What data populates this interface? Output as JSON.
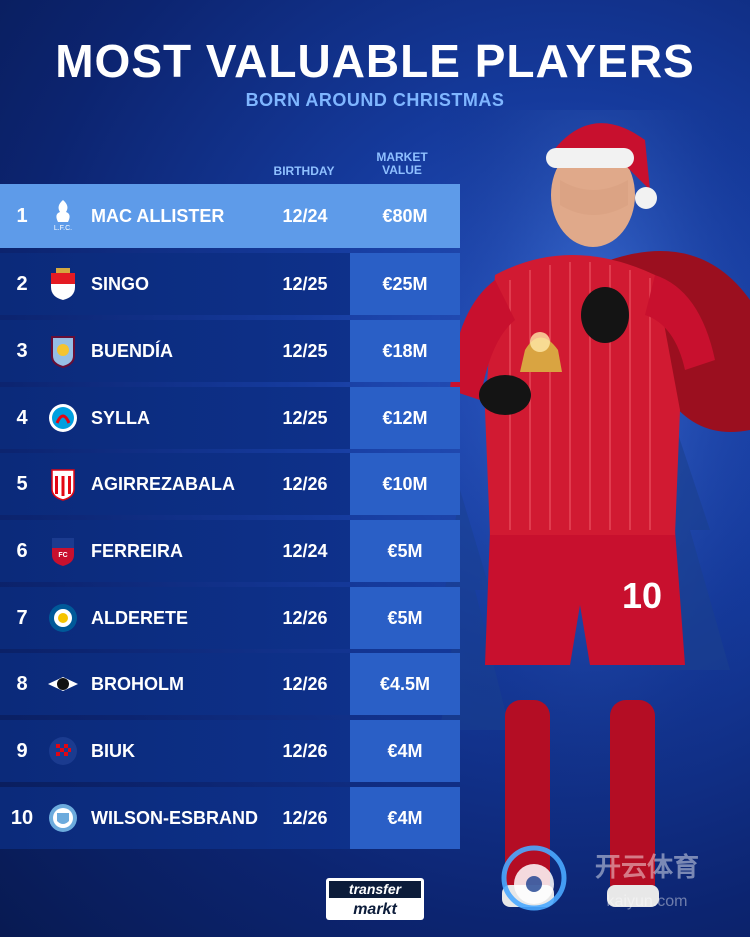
{
  "header": {
    "title": "MOST VALUABLE PLAYERS",
    "subtitle": "BORN AROUND CHRISTMAS"
  },
  "columns": {
    "birthday": "BIRTHDAY",
    "market_value_line1": "MARKET",
    "market_value_line2": "VALUE"
  },
  "players": [
    {
      "rank": "1",
      "name": "MAC ALLISTER",
      "birthday": "12/24",
      "value": "€80M",
      "club_icon": "liverpool-crest-icon"
    },
    {
      "rank": "2",
      "name": "SINGO",
      "birthday": "12/25",
      "value": "€25M",
      "club_icon": "monaco-crest-icon"
    },
    {
      "rank": "3",
      "name": "BUENDÍA",
      "birthday": "12/25",
      "value": "€18M",
      "club_icon": "aston-villa-crest-icon"
    },
    {
      "rank": "4",
      "name": "SYLLA",
      "birthday": "12/25",
      "value": "€12M",
      "club_icon": "strasbourg-crest-icon"
    },
    {
      "rank": "5",
      "name": "AGIRREZABALA",
      "birthday": "12/26",
      "value": "€10M",
      "club_icon": "athletic-club-crest-icon"
    },
    {
      "rank": "6",
      "name": "FERREIRA",
      "birthday": "12/24",
      "value": "€5M",
      "club_icon": "fc-dallas-crest-icon"
    },
    {
      "rank": "7",
      "name": "ALDERETE",
      "birthday": "12/26",
      "value": "€5M",
      "club_icon": "getafe-crest-icon"
    },
    {
      "rank": "8",
      "name": "BROHOLM",
      "birthday": "12/26",
      "value": "€4.5M",
      "club_icon": "rosenborg-crest-icon"
    },
    {
      "rank": "9",
      "name": "BIUK",
      "birthday": "12/26",
      "value": "€4M",
      "club_icon": "hajduk-split-crest-icon"
    },
    {
      "rank": "10",
      "name": "WILSON-ESBRAND",
      "birthday": "12/26",
      "value": "€4M",
      "club_icon": "man-city-crest-icon"
    }
  ],
  "footer": {
    "logo_line1": "transfer",
    "logo_line2": "markt"
  },
  "watermark": {
    "text": "开云体育",
    "url": "kaiyun.com"
  },
  "player_shirt_number": "10",
  "colors": {
    "background": "#0c2470",
    "highlight_row": "#5e9be9",
    "value_cell": "#2a5fc6",
    "subtitle": "#7fb6ff",
    "jersey_red": "#c8102e"
  }
}
